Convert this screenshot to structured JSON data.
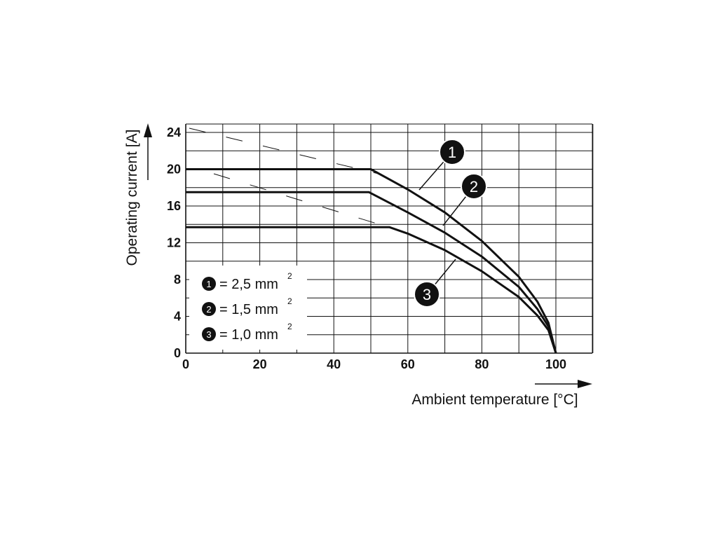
{
  "chart_data": {
    "type": "line",
    "xlabel": "Ambient temperature [°C]",
    "ylabel": "Operating current [A]",
    "xlim": [
      0,
      110
    ],
    "ylim": [
      0,
      25
    ],
    "x_ticks": [
      "0",
      "20",
      "40",
      "60",
      "80",
      "100"
    ],
    "y_ticks": [
      "0",
      "4",
      "8",
      "12",
      "16",
      "20",
      "24"
    ],
    "grid": true,
    "series": [
      {
        "name": "1",
        "legend": "= 2,5 mm",
        "superscript": "2",
        "x": [
          0,
          50,
          60,
          70,
          80,
          90,
          95,
          98,
          100
        ],
        "y": [
          20,
          20,
          17.8,
          15.3,
          12.2,
          8.3,
          5.6,
          3.3,
          0
        ]
      },
      {
        "name": "2",
        "legend": "= 1,5 mm",
        "superscript": "2",
        "x": [
          0,
          49.5,
          60,
          70,
          80,
          90,
          95,
          98,
          100
        ],
        "y": [
          17.5,
          17.5,
          15.3,
          13.1,
          10.5,
          7.2,
          4.8,
          2.9,
          0
        ]
      },
      {
        "name": "3",
        "legend": "= 1,0 mm",
        "superscript": "2",
        "x": [
          0,
          55,
          60,
          70,
          80,
          90,
          95,
          98,
          100
        ],
        "y": [
          13.7,
          13.7,
          13,
          11.2,
          8.9,
          6.1,
          4.1,
          2.5,
          0
        ]
      }
    ],
    "legend_position": "bottom-left"
  }
}
